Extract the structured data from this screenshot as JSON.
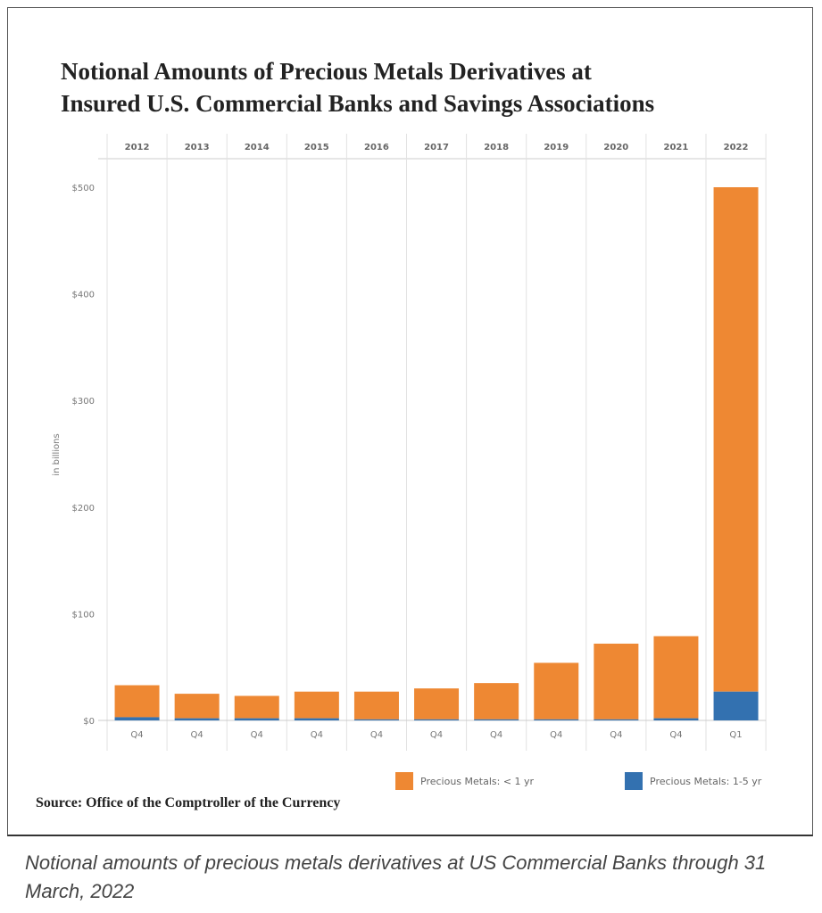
{
  "title_line1": "Notional Amounts of Precious Metals Derivatives at",
  "title_line2": "Insured U.S. Commercial Banks and Savings Associations",
  "source": "Source: Office of the Comptroller of the Currency",
  "caption": "Notional amounts of precious metals derivatives at US Commercial Banks through 31 March, 2022",
  "colors": {
    "short": "#EE8833",
    "long": "#3371B0",
    "grid": "#dddddd",
    "text": "#666666"
  },
  "chart_data": {
    "type": "bar",
    "stacked": true,
    "title": "Notional Amounts of Precious Metals Derivatives at Insured U.S. Commercial Banks and Savings Associations",
    "years": [
      "2012",
      "2013",
      "2014",
      "2015",
      "2016",
      "2017",
      "2018",
      "2019",
      "2020",
      "2021",
      "2022"
    ],
    "categories": [
      "Q4",
      "Q4",
      "Q4",
      "Q4",
      "Q4",
      "Q4",
      "Q4",
      "Q4",
      "Q4",
      "Q4",
      "Q1"
    ],
    "ylabel": "in billions",
    "ylim": [
      0,
      500
    ],
    "yticks": [
      "$0",
      "$100",
      "$200",
      "$300",
      "$400",
      "$500"
    ],
    "ytick_values": [
      0,
      100,
      200,
      300,
      400,
      500
    ],
    "grid": true,
    "legend_position": "bottom-right",
    "series": [
      {
        "name": "Precious Metals: 1-5 yr",
        "color": "#3371B0",
        "values": [
          3,
          2,
          2,
          2,
          1,
          1,
          1,
          1,
          1,
          2,
          27
        ]
      },
      {
        "name": "Precious Metals: < 1 yr",
        "color": "#EE8833",
        "values": [
          30,
          23,
          21,
          25,
          26,
          29,
          34,
          53,
          71,
          77,
          473
        ]
      }
    ],
    "legend": [
      "Precious Metals: < 1 yr",
      "Precious Metals: 1-5 yr"
    ]
  }
}
